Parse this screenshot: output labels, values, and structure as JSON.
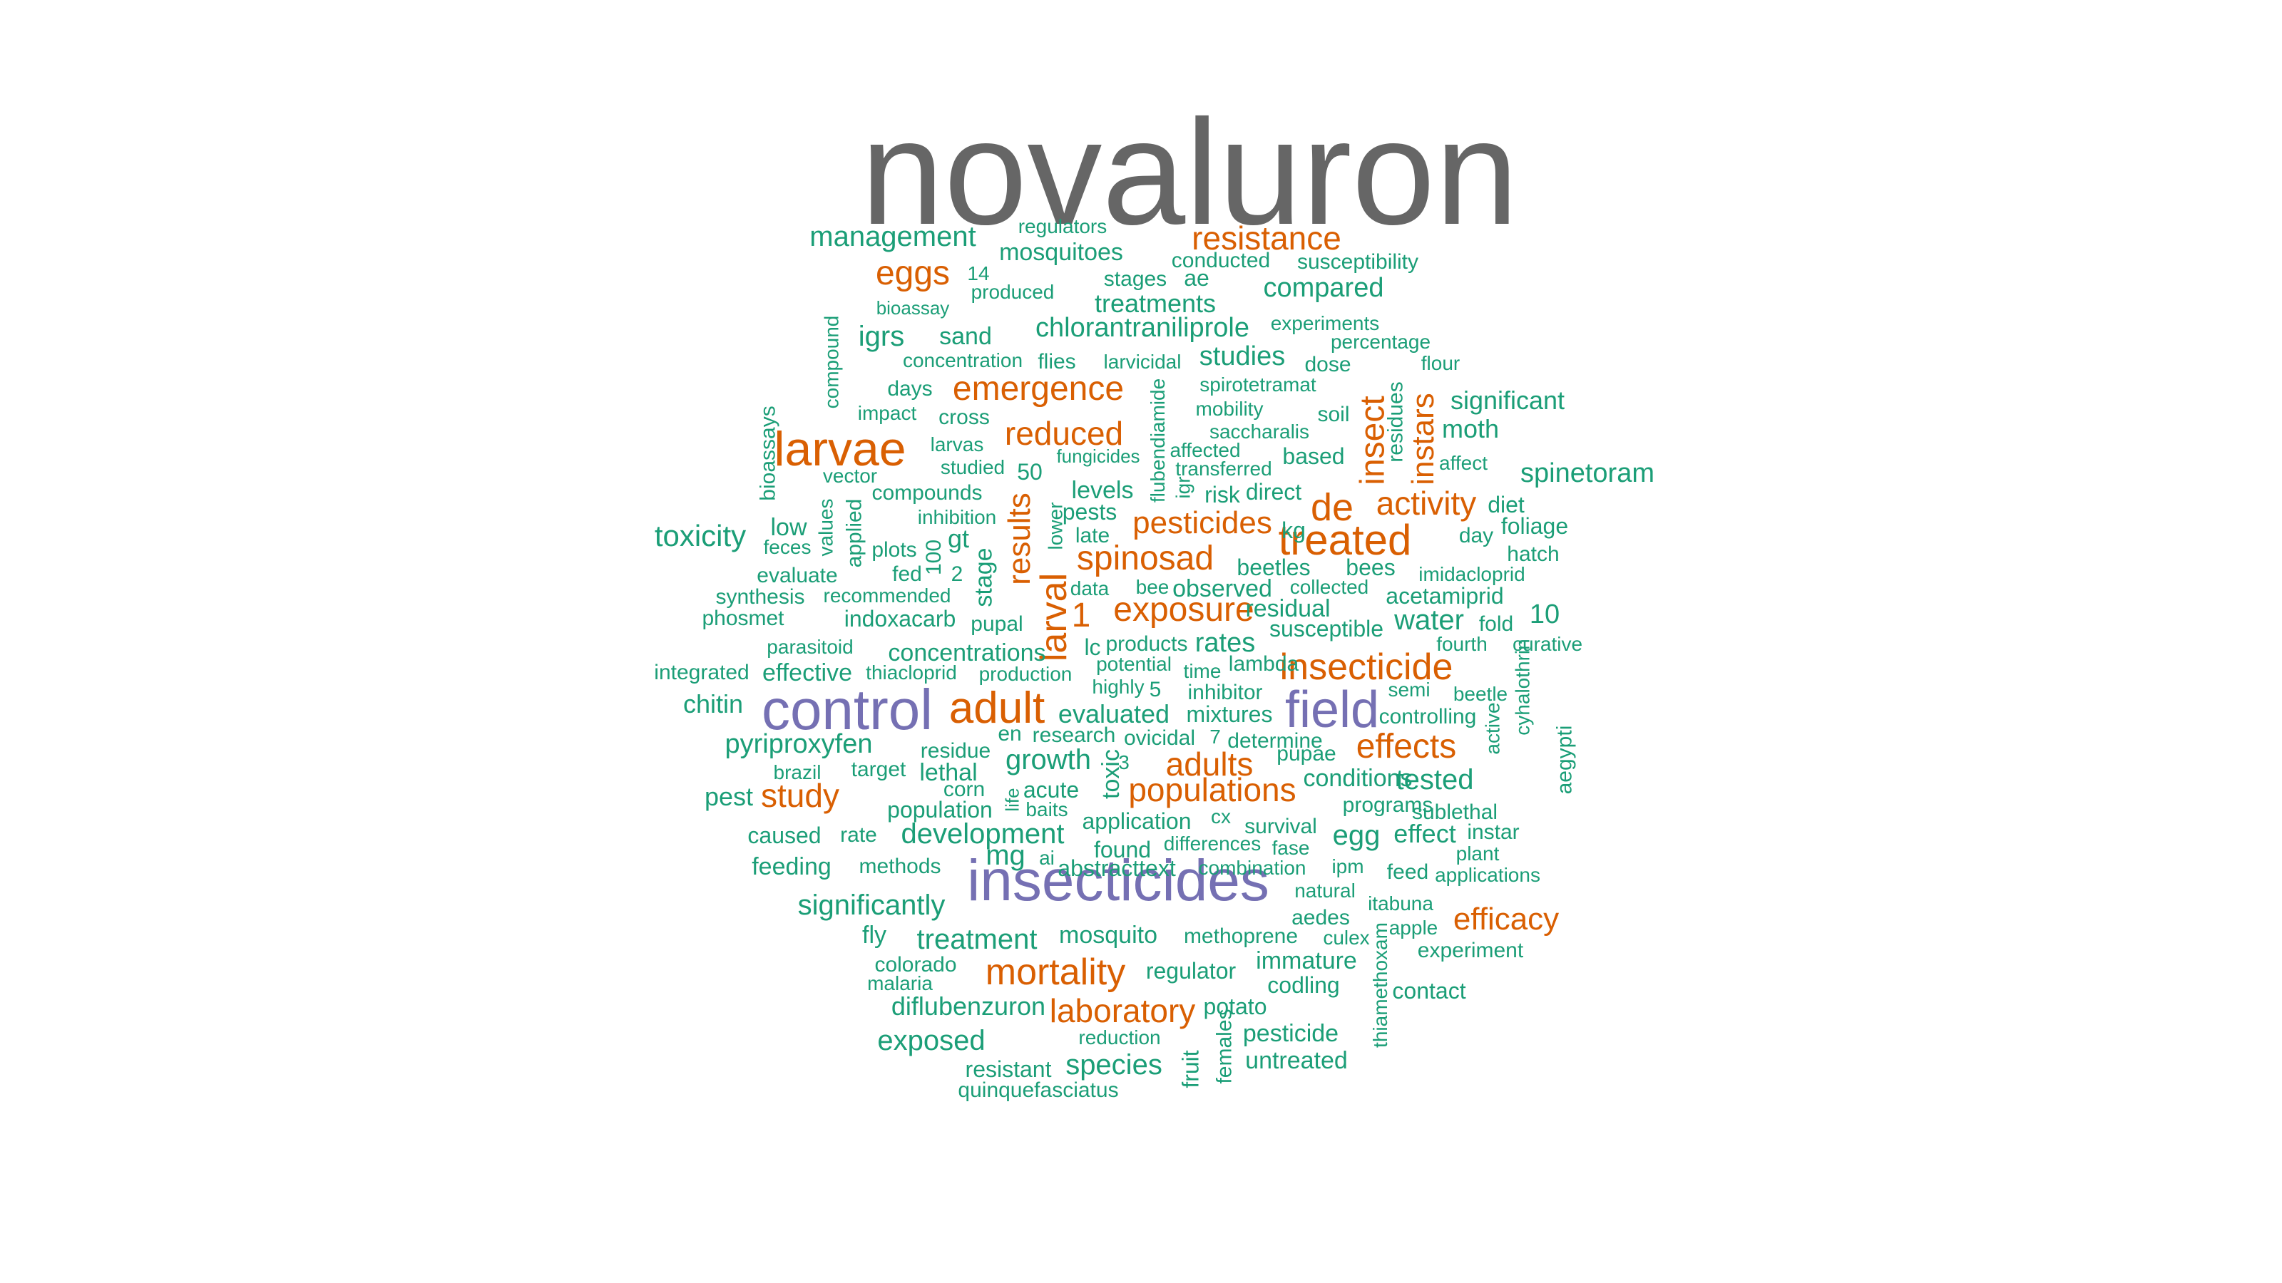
{
  "palette": {
    "gray": "#666666",
    "purple": "#7570b3",
    "orange": "#d95f02",
    "green": "#1b9e77"
  },
  "words": [
    {
      "text": "novaluron",
      "color": "gray"
    },
    {
      "text": "insecticides",
      "color": "purple"
    },
    {
      "text": "control",
      "color": "purple"
    },
    {
      "text": "field",
      "color": "purple"
    },
    {
      "text": "larvae",
      "color": "orange"
    },
    {
      "text": "treated",
      "color": "orange"
    },
    {
      "text": "adult",
      "color": "orange"
    },
    {
      "text": "mortality",
      "color": "orange"
    },
    {
      "text": "insecticide",
      "color": "orange"
    },
    {
      "text": "exposure",
      "color": "orange"
    },
    {
      "text": "emergence",
      "color": "orange"
    },
    {
      "text": "effects",
      "color": "orange"
    },
    {
      "text": "spinosad",
      "color": "orange"
    },
    {
      "text": "laboratory",
      "color": "orange"
    },
    {
      "text": "resistance",
      "color": "orange"
    },
    {
      "text": "populations",
      "color": "orange"
    },
    {
      "text": "eggs",
      "color": "orange"
    },
    {
      "text": "reduced",
      "color": "orange"
    },
    {
      "text": "pesticides",
      "color": "orange"
    },
    {
      "text": "activity",
      "color": "orange"
    },
    {
      "text": "adults",
      "color": "orange"
    },
    {
      "text": "study",
      "color": "orange"
    },
    {
      "text": "efficacy",
      "color": "orange"
    },
    {
      "text": "de",
      "color": "orange"
    },
    {
      "text": "larval",
      "color": "orange"
    },
    {
      "text": "results",
      "color": "orange"
    },
    {
      "text": "insect",
      "color": "orange"
    },
    {
      "text": "instars",
      "color": "orange"
    },
    {
      "text": "1",
      "color": "orange"
    },
    {
      "text": "management",
      "color": "green"
    },
    {
      "text": "regulators",
      "color": "green"
    },
    {
      "text": "mosquitoes",
      "color": "green"
    },
    {
      "text": "14",
      "color": "green"
    },
    {
      "text": "produced",
      "color": "green"
    },
    {
      "text": "stages",
      "color": "green"
    },
    {
      "text": "ae",
      "color": "green"
    },
    {
      "text": "conducted",
      "color": "green"
    },
    {
      "text": "susceptibility",
      "color": "green"
    },
    {
      "text": "compared",
      "color": "green"
    },
    {
      "text": "treatments",
      "color": "green"
    },
    {
      "text": "bioassay",
      "color": "green"
    },
    {
      "text": "experiments",
      "color": "green"
    },
    {
      "text": "chlorantraniliprole",
      "color": "green"
    },
    {
      "text": "igrs",
      "color": "green"
    },
    {
      "text": "sand",
      "color": "green"
    },
    {
      "text": "percentage",
      "color": "green"
    },
    {
      "text": "concentration",
      "color": "green"
    },
    {
      "text": "flies",
      "color": "green"
    },
    {
      "text": "larvicidal",
      "color": "green"
    },
    {
      "text": "studies",
      "color": "green"
    },
    {
      "text": "dose",
      "color": "green"
    },
    {
      "text": "flour",
      "color": "green"
    },
    {
      "text": "compound",
      "color": "green"
    },
    {
      "text": "days",
      "color": "green"
    },
    {
      "text": "spirotetramat",
      "color": "green"
    },
    {
      "text": "significant",
      "color": "green"
    },
    {
      "text": "impact",
      "color": "green"
    },
    {
      "text": "cross",
      "color": "green"
    },
    {
      "text": "mobility",
      "color": "green"
    },
    {
      "text": "soil",
      "color": "green"
    },
    {
      "text": "moth",
      "color": "green"
    },
    {
      "text": "larvas",
      "color": "green"
    },
    {
      "text": "saccharalis",
      "color": "green"
    },
    {
      "text": "residues",
      "color": "green"
    },
    {
      "text": "bioassays",
      "color": "green"
    },
    {
      "text": "fungicides",
      "color": "green"
    },
    {
      "text": "affected",
      "color": "green"
    },
    {
      "text": "based",
      "color": "green"
    },
    {
      "text": "affect",
      "color": "green"
    },
    {
      "text": "studied",
      "color": "green"
    },
    {
      "text": "50",
      "color": "green"
    },
    {
      "text": "transferred",
      "color": "green"
    },
    {
      "text": "spinetoram",
      "color": "green"
    },
    {
      "text": "vector",
      "color": "green"
    },
    {
      "text": "flubendiamide",
      "color": "green"
    },
    {
      "text": "compounds",
      "color": "green"
    },
    {
      "text": "levels",
      "color": "green"
    },
    {
      "text": "igr",
      "color": "green"
    },
    {
      "text": "risk",
      "color": "green"
    },
    {
      "text": "direct",
      "color": "green"
    },
    {
      "text": "diet",
      "color": "green"
    },
    {
      "text": "applied",
      "color": "green"
    },
    {
      "text": "pests",
      "color": "green"
    },
    {
      "text": "inhibition",
      "color": "green"
    },
    {
      "text": "lower",
      "color": "green"
    },
    {
      "text": "foliage",
      "color": "green"
    },
    {
      "text": "toxicity",
      "color": "green"
    },
    {
      "text": "low",
      "color": "green"
    },
    {
      "text": "values",
      "color": "green"
    },
    {
      "text": "kg",
      "color": "green"
    },
    {
      "text": "day",
      "color": "green"
    },
    {
      "text": "feces",
      "color": "green"
    },
    {
      "text": "gt",
      "color": "green"
    },
    {
      "text": "late",
      "color": "green"
    },
    {
      "text": "hatch",
      "color": "green"
    },
    {
      "text": "plots",
      "color": "green"
    },
    {
      "text": "100",
      "color": "green"
    },
    {
      "text": "stage",
      "color": "green"
    },
    {
      "text": "bees",
      "color": "green"
    },
    {
      "text": "evaluate",
      "color": "green"
    },
    {
      "text": "fed",
      "color": "green"
    },
    {
      "text": "2",
      "color": "green"
    },
    {
      "text": "beetles",
      "color": "green"
    },
    {
      "text": "imidacloprid",
      "color": "green"
    },
    {
      "text": "data",
      "color": "green"
    },
    {
      "text": "bee",
      "color": "green"
    },
    {
      "text": "observed",
      "color": "green"
    },
    {
      "text": "collected",
      "color": "green"
    },
    {
      "text": "synthesis",
      "color": "green"
    },
    {
      "text": "recommended",
      "color": "green"
    },
    {
      "text": "acetamiprid",
      "color": "green"
    },
    {
      "text": "residual",
      "color": "green"
    },
    {
      "text": "10",
      "color": "green"
    },
    {
      "text": "phosmet",
      "color": "green"
    },
    {
      "text": "indoxacarb",
      "color": "green"
    },
    {
      "text": "pupal",
      "color": "green"
    },
    {
      "text": "water",
      "color": "green"
    },
    {
      "text": "fold",
      "color": "green"
    },
    {
      "text": "susceptible",
      "color": "green"
    },
    {
      "text": "lc",
      "color": "green"
    },
    {
      "text": "products",
      "color": "green"
    },
    {
      "text": "rates",
      "color": "green"
    },
    {
      "text": "fourth",
      "color": "green"
    },
    {
      "text": "curative",
      "color": "green"
    },
    {
      "text": "parasitoid",
      "color": "green"
    },
    {
      "text": "concentrations",
      "color": "green"
    },
    {
      "text": "potential",
      "color": "green"
    },
    {
      "text": "lambda",
      "color": "green"
    },
    {
      "text": "integrated",
      "color": "green"
    },
    {
      "text": "effective",
      "color": "green"
    },
    {
      "text": "thiacloprid",
      "color": "green"
    },
    {
      "text": "production",
      "color": "green"
    },
    {
      "text": "time",
      "color": "green"
    },
    {
      "text": "cyhalothrin",
      "color": "green"
    },
    {
      "text": "highly",
      "color": "green"
    },
    {
      "text": "5",
      "color": "green"
    },
    {
      "text": "inhibitor",
      "color": "green"
    },
    {
      "text": "semi",
      "color": "green"
    },
    {
      "text": "beetle",
      "color": "green"
    },
    {
      "text": "chitin",
      "color": "green"
    },
    {
      "text": "evaluated",
      "color": "green"
    },
    {
      "text": "mixtures",
      "color": "green"
    },
    {
      "text": "controlling",
      "color": "green"
    },
    {
      "text": "active",
      "color": "green"
    },
    {
      "text": "en",
      "color": "green"
    },
    {
      "text": "research",
      "color": "green"
    },
    {
      "text": "ovicidal",
      "color": "green"
    },
    {
      "text": "7",
      "color": "green"
    },
    {
      "text": "determine",
      "color": "green"
    },
    {
      "text": "aegypti",
      "color": "green"
    },
    {
      "text": "pyriproxyfen",
      "color": "green"
    },
    {
      "text": "residue",
      "color": "green"
    },
    {
      "text": "pupae",
      "color": "green"
    },
    {
      "text": "growth",
      "color": "green"
    },
    {
      "text": "3",
      "color": "green"
    },
    {
      "text": "brazil",
      "color": "green"
    },
    {
      "text": "target",
      "color": "green"
    },
    {
      "text": "lethal",
      "color": "green"
    },
    {
      "text": "toxic",
      "color": "green"
    },
    {
      "text": "conditions",
      "color": "green"
    },
    {
      "text": "tested",
      "color": "green"
    },
    {
      "text": "corn",
      "color": "green"
    },
    {
      "text": "acute",
      "color": "green"
    },
    {
      "text": "pest",
      "color": "green"
    },
    {
      "text": "life",
      "color": "green"
    },
    {
      "text": "programs",
      "color": "green"
    },
    {
      "text": "population",
      "color": "green"
    },
    {
      "text": "baits",
      "color": "green"
    },
    {
      "text": "sublethal",
      "color": "green"
    },
    {
      "text": "cx",
      "color": "green"
    },
    {
      "text": "application",
      "color": "green"
    },
    {
      "text": "caused",
      "color": "green"
    },
    {
      "text": "rate",
      "color": "green"
    },
    {
      "text": "development",
      "color": "green"
    },
    {
      "text": "survival",
      "color": "green"
    },
    {
      "text": "egg",
      "color": "green"
    },
    {
      "text": "effect",
      "color": "green"
    },
    {
      "text": "instar",
      "color": "green"
    },
    {
      "text": "differences",
      "color": "green"
    },
    {
      "text": "fase",
      "color": "green"
    },
    {
      "text": "found",
      "color": "green"
    },
    {
      "text": "mg",
      "color": "green"
    },
    {
      "text": "plant",
      "color": "green"
    },
    {
      "text": "feeding",
      "color": "green"
    },
    {
      "text": "methods",
      "color": "green"
    },
    {
      "text": "ai",
      "color": "green"
    },
    {
      "text": "abstracttext",
      "color": "green"
    },
    {
      "text": "combination",
      "color": "green"
    },
    {
      "text": "ipm",
      "color": "green"
    },
    {
      "text": "feed",
      "color": "green"
    },
    {
      "text": "applications",
      "color": "green"
    },
    {
      "text": "natural",
      "color": "green"
    },
    {
      "text": "significantly",
      "color": "green"
    },
    {
      "text": "itabuna",
      "color": "green"
    },
    {
      "text": "aedes",
      "color": "green"
    },
    {
      "text": "fly",
      "color": "green"
    },
    {
      "text": "treatment",
      "color": "green"
    },
    {
      "text": "mosquito",
      "color": "green"
    },
    {
      "text": "methoprene",
      "color": "green"
    },
    {
      "text": "culex",
      "color": "green"
    },
    {
      "text": "apple",
      "color": "green"
    },
    {
      "text": "experiment",
      "color": "green"
    },
    {
      "text": "colorado",
      "color": "green"
    },
    {
      "text": "regulator",
      "color": "green"
    },
    {
      "text": "immature",
      "color": "green"
    },
    {
      "text": "malaria",
      "color": "green"
    },
    {
      "text": "codling",
      "color": "green"
    },
    {
      "text": "thiamethoxam",
      "color": "green"
    },
    {
      "text": "contact",
      "color": "green"
    },
    {
      "text": "diflubenzuron",
      "color": "green"
    },
    {
      "text": "potato",
      "color": "green"
    },
    {
      "text": "fruit",
      "color": "green"
    },
    {
      "text": "females",
      "color": "green"
    },
    {
      "text": "reduction",
      "color": "green"
    },
    {
      "text": "pesticide",
      "color": "green"
    },
    {
      "text": "exposed",
      "color": "green"
    },
    {
      "text": "species",
      "color": "green"
    },
    {
      "text": "untreated",
      "color": "green"
    },
    {
      "text": "resistant",
      "color": "green"
    },
    {
      "text": "quinquefasciatus",
      "color": "green"
    }
  ]
}
